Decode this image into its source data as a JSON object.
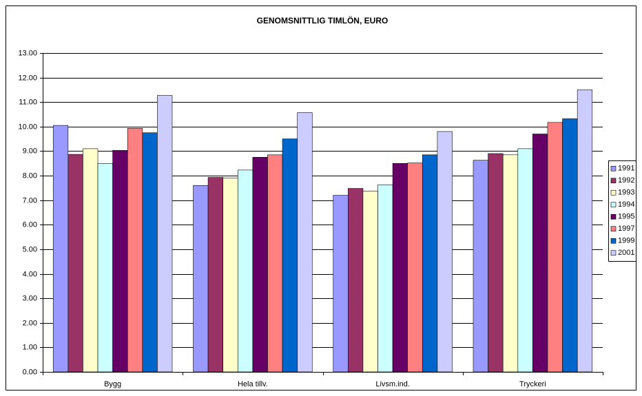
{
  "chart_data": {
    "type": "bar",
    "title": "GENOMSNITTLIG TIMLÖN, EURO",
    "categories": [
      "Bygg",
      "Hela tillv.",
      "Livsm.ind.",
      "Tryckeri"
    ],
    "series": [
      {
        "name": "1991",
        "color": "#9999ff",
        "values": [
          10.05,
          7.6,
          7.2,
          8.63
        ]
      },
      {
        "name": "1992",
        "color": "#993366",
        "values": [
          8.87,
          7.93,
          7.48,
          8.9
        ]
      },
      {
        "name": "1993",
        "color": "#ffffcc",
        "values": [
          9.1,
          7.9,
          7.37,
          8.85
        ]
      },
      {
        "name": "1994",
        "color": "#ccffff",
        "values": [
          8.5,
          8.23,
          7.63,
          9.1
        ]
      },
      {
        "name": "1995",
        "color": "#660066",
        "values": [
          9.03,
          8.75,
          8.5,
          9.7
        ]
      },
      {
        "name": "1997",
        "color": "#ff8080",
        "values": [
          9.93,
          8.85,
          8.52,
          10.17
        ]
      },
      {
        "name": "1999",
        "color": "#0066cc",
        "values": [
          9.75,
          9.5,
          8.85,
          10.32
        ]
      },
      {
        "name": "2001",
        "color": "#ccccff",
        "values": [
          11.27,
          10.57,
          9.8,
          11.5
        ]
      }
    ],
    "ylim": [
      0,
      13
    ],
    "yticks": [
      {
        "value": 0,
        "label": "0.00"
      },
      {
        "value": 1,
        "label": "1.00"
      },
      {
        "value": 2,
        "label": "2.00"
      },
      {
        "value": 3,
        "label": "3.00"
      },
      {
        "value": 4,
        "label": "4.00"
      },
      {
        "value": 5,
        "label": "5.00"
      },
      {
        "value": 6,
        "label": "6.00"
      },
      {
        "value": 7,
        "label": "7.00"
      },
      {
        "value": 8,
        "label": "8.00"
      },
      {
        "value": 9,
        "label": "9.00"
      },
      {
        "value": 10,
        "label": "10.00"
      },
      {
        "value": 11,
        "label": "11.00"
      },
      {
        "value": 12,
        "label": "12.00"
      },
      {
        "value": 13,
        "label": "13.00"
      }
    ],
    "grid": true,
    "legend": "right"
  }
}
